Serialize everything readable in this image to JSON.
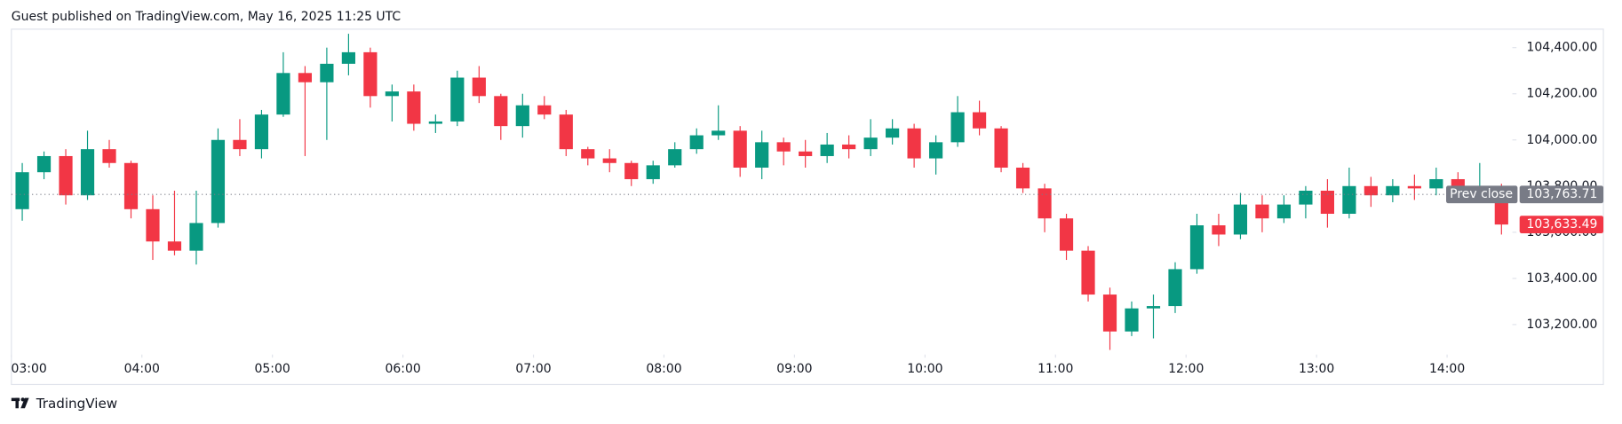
{
  "header": {
    "text": "Guest published on TradingView.com, May 16, 2025 11:25 UTC"
  },
  "footer": {
    "brand": "TradingView"
  },
  "chart_data": {
    "type": "candlestick",
    "up_color": "#089981",
    "down_color": "#f23645",
    "x": [
      "03:00",
      "03:10",
      "03:20",
      "03:30",
      "03:40",
      "03:50",
      "04:00",
      "04:10",
      "04:20",
      "04:30",
      "04:40",
      "04:50",
      "05:00",
      "05:10",
      "05:20",
      "05:30",
      "05:40",
      "05:50",
      "06:00",
      "06:10",
      "06:20",
      "06:30",
      "06:40",
      "06:50",
      "07:00",
      "07:10",
      "07:20",
      "07:30",
      "07:40",
      "07:50",
      "08:00",
      "08:10",
      "08:20",
      "08:30",
      "08:40",
      "08:50",
      "09:00",
      "09:10",
      "09:20",
      "09:30",
      "09:40",
      "09:50",
      "10:00",
      "10:10",
      "10:20",
      "10:30",
      "10:40",
      "10:50",
      "11:00",
      "11:10",
      "11:20",
      "11:30",
      "11:40",
      "11:50",
      "12:00",
      "12:10",
      "12:20",
      "12:30",
      "12:40",
      "12:50",
      "13:00",
      "13:10",
      "13:20",
      "13:30",
      "13:40",
      "13:50",
      "14:00",
      "14:10",
      "14:20"
    ],
    "open": [
      103700,
      103860,
      103930,
      103760,
      103960,
      103900,
      103700,
      103560,
      103520,
      103640,
      104000,
      103960,
      104110,
      104290,
      104250,
      104330,
      104380,
      104190,
      104210,
      104070,
      104080,
      104270,
      104190,
      104060,
      104150,
      104110,
      103960,
      103920,
      103900,
      103830,
      103890,
      103960,
      104020,
      104040,
      103880,
      103990,
      103950,
      103930,
      103980,
      103960,
      104010,
      104050,
      103920,
      103990,
      104120,
      104050,
      103880,
      103790,
      103660,
      103520,
      103330,
      103170,
      103270,
      103280,
      103440,
      103630,
      103590,
      103720,
      103660,
      103720,
      103780,
      103680,
      103800,
      103760,
      103800,
      103790,
      103830,
      103780,
      103800
    ],
    "high": [
      103900,
      103950,
      103960,
      104040,
      104000,
      103910,
      103760,
      103780,
      103780,
      104050,
      104090,
      104130,
      104380,
      104320,
      104400,
      104460,
      104400,
      104240,
      104240,
      104110,
      104300,
      104320,
      104200,
      104200,
      104190,
      104130,
      103970,
      103960,
      103910,
      103910,
      103990,
      104050,
      104150,
      104060,
      104040,
      104010,
      104000,
      104030,
      104020,
      104090,
      104090,
      104070,
      104020,
      104190,
      104170,
      104060,
      103900,
      103810,
      103680,
      103540,
      103360,
      103300,
      103330,
      103470,
      103680,
      103680,
      103770,
      103760,
      103760,
      103800,
      103830,
      103880,
      103840,
      103830,
      103850,
      103880,
      103860,
      103900,
      103810
    ],
    "low": [
      103650,
      103830,
      103720,
      103740,
      103880,
      103660,
      103480,
      103500,
      103460,
      103620,
      103930,
      103920,
      104100,
      103930,
      104000,
      104280,
      104140,
      104080,
      104040,
      104030,
      104060,
      104160,
      104000,
      104010,
      104090,
      103930,
      103890,
      103860,
      103800,
      103810,
      103880,
      103940,
      104000,
      103840,
      103830,
      103890,
      103880,
      103900,
      103920,
      103930,
      103980,
      103880,
      103850,
      103970,
      104020,
      103860,
      103770,
      103600,
      103480,
      103300,
      103090,
      103150,
      103140,
      103250,
      103420,
      103540,
      103570,
      103600,
      103640,
      103660,
      103620,
      103660,
      103710,
      103730,
      103740,
      103760,
      103750,
      103740,
      103590
    ],
    "close": [
      103860,
      103930,
      103760,
      103960,
      103900,
      103700,
      103560,
      103520,
      103640,
      104000,
      103960,
      104110,
      104290,
      104250,
      104330,
      104380,
      104190,
      104210,
      104070,
      104080,
      104270,
      104190,
      104060,
      104150,
      104110,
      103960,
      103920,
      103900,
      103830,
      103890,
      103960,
      104020,
      104040,
      103880,
      103990,
      103950,
      103930,
      103980,
      103960,
      104010,
      104050,
      103920,
      103990,
      104120,
      104050,
      103880,
      103790,
      103660,
      103520,
      103330,
      103170,
      103270,
      103280,
      103440,
      103630,
      103590,
      103720,
      103660,
      103720,
      103780,
      103680,
      103800,
      103760,
      103800,
      103790,
      103830,
      103780,
      103800,
      103633.49
    ],
    "xlim": [
      "03:00",
      "14:30"
    ],
    "xticks": [
      "03:00",
      "04:00",
      "05:00",
      "06:00",
      "07:00",
      "08:00",
      "09:00",
      "10:00",
      "11:00",
      "12:00",
      "13:00",
      "14:00"
    ],
    "ylim": [
      103070,
      104480
    ],
    "yticks": [
      {
        "value": 103200,
        "label": "103,200.00"
      },
      {
        "value": 103400,
        "label": "103,400.00"
      },
      {
        "value": 103600,
        "label": "103,600.00"
      },
      {
        "value": 103800,
        "label": "103,800.00"
      },
      {
        "value": 104000,
        "label": "104,000.00"
      },
      {
        "value": 104200,
        "label": "104,200.00"
      },
      {
        "value": 104400,
        "label": "104,400.00"
      }
    ],
    "prev_close": {
      "name": "Prev close",
      "value": 103763.71,
      "label": "103,763.71",
      "color": "#787b86"
    },
    "last_price": {
      "value": 103633.49,
      "label": "103,633.49",
      "color": "#f23645"
    }
  }
}
